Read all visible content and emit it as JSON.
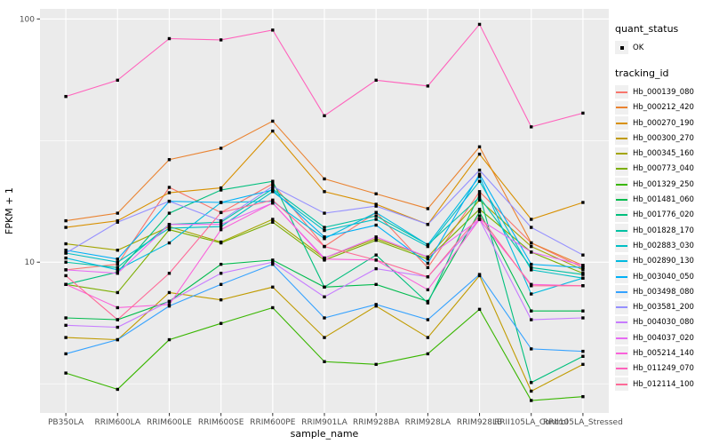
{
  "legend": {
    "quant_title": "quant_status",
    "quant_items": [
      {
        "label": "OK"
      }
    ],
    "tracking_title": "tracking_id",
    "key_bg": "#F0F0F0",
    "point_color": "#000000"
  },
  "chart_data": {
    "type": "line",
    "xlabel": "sample_name",
    "ylabel": "FPKM + 1",
    "yscale": "log10",
    "ylim": [
      2.4,
      110
    ],
    "grid": "white-on-gray",
    "panel_bg": "#EBEBEB",
    "grid_color": "#FFFFFF",
    "tick_label_color": "#4D4D4D",
    "point_shape": "filled-square",
    "point_color": "#000000",
    "legend_position": "right",
    "y_ticks": [
      {
        "value": 100,
        "label": "100"
      },
      {
        "value": 10,
        "label": "10"
      }
    ],
    "y_minor_ticks": [
      31.62,
      3.162
    ],
    "x_categories": [
      "PB350LA",
      "RRIM600LA",
      "RRIM600LE",
      "RRIM600SE",
      "RRIM600PE",
      "RRIM901LA",
      "RRIM928BA",
      "RRIM928LA",
      "RRIM928LB",
      "RRII105LA_Control",
      "RRII105LA_Stressed"
    ],
    "series": [
      {
        "name": "Hb_000139_080",
        "color": "#F8766D",
        "values": [
          9.3,
          9.8,
          20.3,
          16,
          21,
          11.6,
          16,
          9.5,
          19.5,
          12,
          9.5
        ]
      },
      {
        "name": "Hb_000212_420",
        "color": "#EA8331",
        "values": [
          14.8,
          15.9,
          26.4,
          29.4,
          38,
          22,
          19.1,
          16.6,
          29.8,
          12,
          9.7
        ]
      },
      {
        "name": "Hb_000270_190",
        "color": "#D89000",
        "values": [
          13.9,
          14.8,
          19.3,
          20.2,
          34.6,
          19.5,
          17.3,
          14.3,
          27.8,
          15,
          17.6
        ]
      },
      {
        "name": "Hb_000300_270",
        "color": "#C09B00",
        "values": [
          4.9,
          4.8,
          7.5,
          7,
          7.9,
          4.9,
          6.6,
          4.9,
          8.8,
          2.95,
          3.8
        ]
      },
      {
        "name": "Hb_000345_160",
        "color": "#A3A500",
        "values": [
          11.9,
          11.2,
          14,
          12.1,
          15,
          10.4,
          12.5,
          10.5,
          18,
          11.6,
          9.3
        ]
      },
      {
        "name": "Hb_000773_040",
        "color": "#7CAE00",
        "values": [
          8.1,
          7.5,
          13.6,
          12,
          14.6,
          10.2,
          12.3,
          10.3,
          16.5,
          11,
          9
        ]
      },
      {
        "name": "Hb_001329_250",
        "color": "#39B600",
        "values": [
          3.5,
          3,
          4.8,
          5.6,
          6.5,
          3.9,
          3.8,
          4.2,
          6.4,
          2.7,
          2.8
        ]
      },
      {
        "name": "Hb_001481_060",
        "color": "#00BB4E",
        "values": [
          5.9,
          5.8,
          6.9,
          9.8,
          10.2,
          7.9,
          8.1,
          6.9,
          16.1,
          6.3,
          6.3
        ]
      },
      {
        "name": "Hb_001776_020",
        "color": "#00BF7D",
        "values": [
          8.1,
          9.1,
          15.9,
          19.8,
          21.5,
          7.9,
          10.7,
          6.8,
          19,
          3.2,
          4.1
        ]
      },
      {
        "name": "Hb_001828_170",
        "color": "#00C1A3",
        "values": [
          10,
          9.5,
          14.3,
          14.6,
          20,
          13.9,
          15.5,
          11.8,
          18.5,
          9.5,
          8.9
        ]
      },
      {
        "name": "Hb_002883_030",
        "color": "#00BFC4",
        "values": [
          10.9,
          10,
          13.8,
          14,
          19.5,
          13.5,
          15,
          11.6,
          21.5,
          9.3,
          8.6
        ]
      },
      {
        "name": "Hb_002890_130",
        "color": "#00BAE0",
        "values": [
          10.4,
          9.3,
          12,
          17.6,
          17.8,
          12.5,
          16,
          11.8,
          22.5,
          7.4,
          8.6
        ]
      },
      {
        "name": "Hb_003040_050",
        "color": "#00B0F6",
        "values": [
          11.2,
          10.3,
          17.8,
          17.6,
          19.8,
          12.7,
          14.2,
          9.9,
          23,
          9.8,
          9.5
        ]
      },
      {
        "name": "Hb_003498_080",
        "color": "#35A2FF",
        "values": [
          4.2,
          4.8,
          6.6,
          8.1,
          9.8,
          5.9,
          6.7,
          5.8,
          8.9,
          4.4,
          4.3
        ]
      },
      {
        "name": "Hb_003581_200",
        "color": "#9590FF",
        "values": [
          10.9,
          14.6,
          17.8,
          14.8,
          20.5,
          15.9,
          17,
          14.3,
          23.9,
          13.9,
          10.7
        ]
      },
      {
        "name": "Hb_004030_080",
        "color": "#C77CFF",
        "values": [
          5.5,
          5.4,
          6.9,
          9,
          10,
          7.2,
          9.4,
          8.7,
          15,
          5.8,
          5.9
        ]
      },
      {
        "name": "Hb_004037_020",
        "color": "#E76BF3",
        "values": [
          9.3,
          9,
          14.3,
          14.3,
          17.5,
          10.4,
          12.7,
          10.5,
          15,
          11,
          9.7
        ]
      },
      {
        "name": "Hb_005214_140",
        "color": "#FA62DB",
        "values": [
          8.1,
          6.5,
          6.7,
          13.6,
          17.5,
          10.3,
          10.2,
          7.7,
          15,
          8.1,
          8
        ]
      },
      {
        "name": "Hb_011249_070",
        "color": "#FF62BC",
        "values": [
          48,
          56,
          83,
          82,
          90,
          40,
          56,
          53,
          95,
          36,
          41
        ]
      },
      {
        "name": "Hb_012114_100",
        "color": "#FF6A98",
        "values": [
          8.8,
          5.8,
          9,
          16,
          18,
          11.6,
          10.2,
          8.7,
          15.5,
          8,
          8
        ]
      }
    ]
  }
}
